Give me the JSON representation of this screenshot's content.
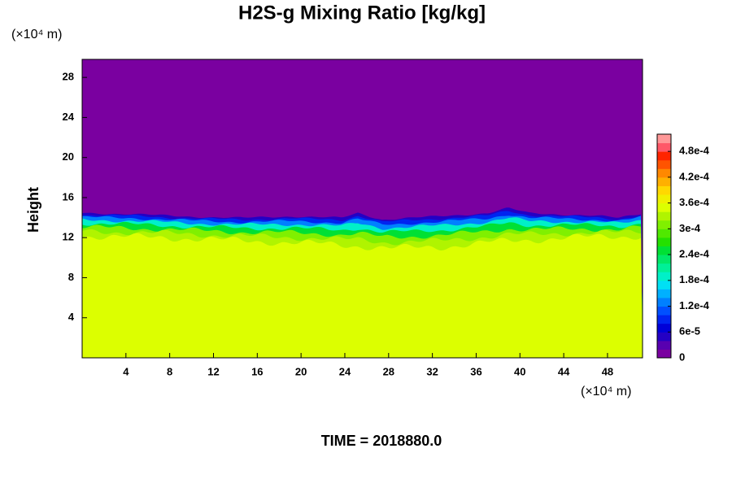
{
  "chart_data": {
    "type": "contour",
    "title": "H2S-g Mixing Ratio [kg/kg]",
    "y_unit": "(×10⁴ m)",
    "x_unit": "(×10⁴ m)",
    "ylabel": "Height",
    "time_label": "TIME = 2018880.0",
    "xlim": [
      0,
      51.2
    ],
    "ylim": [
      0,
      29.8
    ],
    "xticks": [
      4,
      8,
      12,
      16,
      20,
      24,
      28,
      32,
      36,
      40,
      44,
      48
    ],
    "yticks": [
      4,
      8,
      12,
      16,
      20,
      24,
      28
    ],
    "clim": [
      0,
      0.00052
    ],
    "cticks": [
      0,
      {
        "value": 6e-05,
        "label": "6e-5"
      },
      {
        "value": 0.00012,
        "label": "1.2e-4"
      },
      {
        "value": 0.00018,
        "label": "1.8e-4"
      },
      {
        "value": 0.00024,
        "label": "2.4e-4"
      },
      {
        "value": 0.0003,
        "label": "3e-4"
      },
      {
        "value": 0.00036,
        "label": "3.6e-4"
      },
      {
        "value": 0.00042,
        "label": "4.2e-4"
      },
      {
        "value": 0.00048,
        "label": "4.8e-4"
      }
    ],
    "colors": [
      "#7a00a0",
      "#5800b0",
      "#2400c4",
      "#0000d8",
      "#0024f0",
      "#0050ff",
      "#0080ff",
      "#00b0ff",
      "#00e0f4",
      "#00f0c8",
      "#00f098",
      "#00e868",
      "#00e034",
      "#24e000",
      "#50e800",
      "#80f000",
      "#b0f400",
      "#dcff00",
      "#f0f000",
      "#ffd800",
      "#ffb000",
      "#ff8800",
      "#ff5400",
      "#ff2400",
      "#ff5868",
      "#ff9898"
    ]
  }
}
